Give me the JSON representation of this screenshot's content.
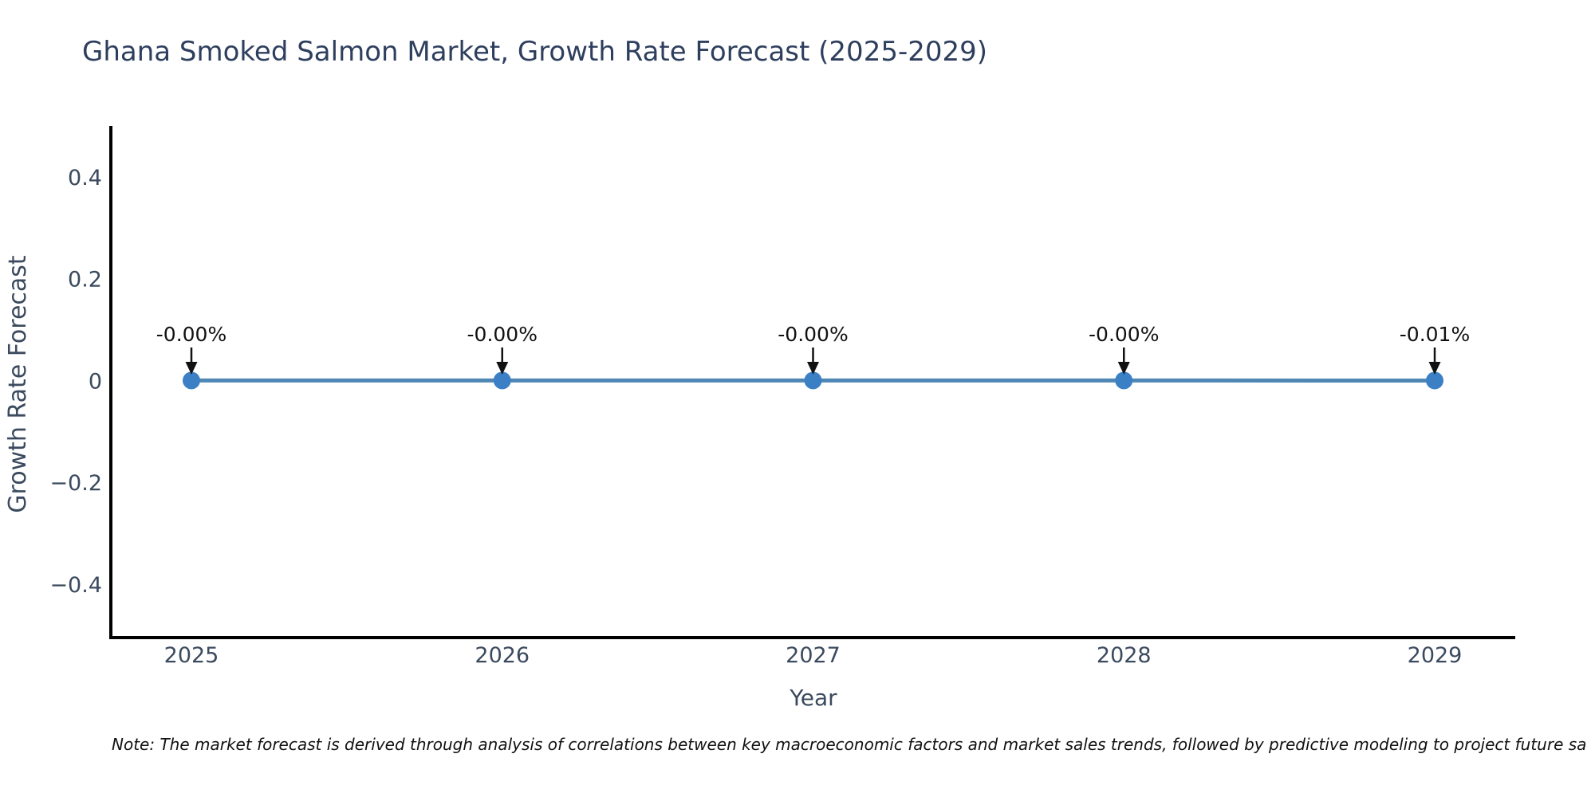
{
  "chart_data": {
    "type": "line",
    "title": "Ghana Smoked Salmon Market, Growth Rate Forecast (2025-2029)",
    "xlabel": "Year",
    "ylabel": "Growth Rate Forecast",
    "categories": [
      "2025",
      "2026",
      "2027",
      "2028",
      "2029"
    ],
    "values": [
      0.0,
      0.0,
      0.0,
      0.0,
      -0.0001
    ],
    "point_labels": [
      "-0.00%",
      "-0.00%",
      "-0.00%",
      "-0.00%",
      "-0.01%"
    ],
    "yticks": [
      -0.4,
      -0.2,
      0,
      0.2,
      0.4
    ],
    "ytick_labels": [
      "−0.4",
      "−0.2",
      "0",
      "0.2",
      "0.4"
    ],
    "ylim": [
      -0.505,
      0.5
    ],
    "grid": false,
    "legend_position": "none",
    "note": "Note: The market forecast is derived through analysis of correlations between key macroeconomic factors and market sales trends, followed by predictive modeling to project future sa",
    "colors": {
      "line": "#4e86b4",
      "marker": "#3b80c4",
      "title_text": "#2e3f5e",
      "axis_text": "#3b4a5e",
      "axis_line": "#000000",
      "annotation": "#111111",
      "note_text": "#111111",
      "background": "#ffffff"
    }
  }
}
